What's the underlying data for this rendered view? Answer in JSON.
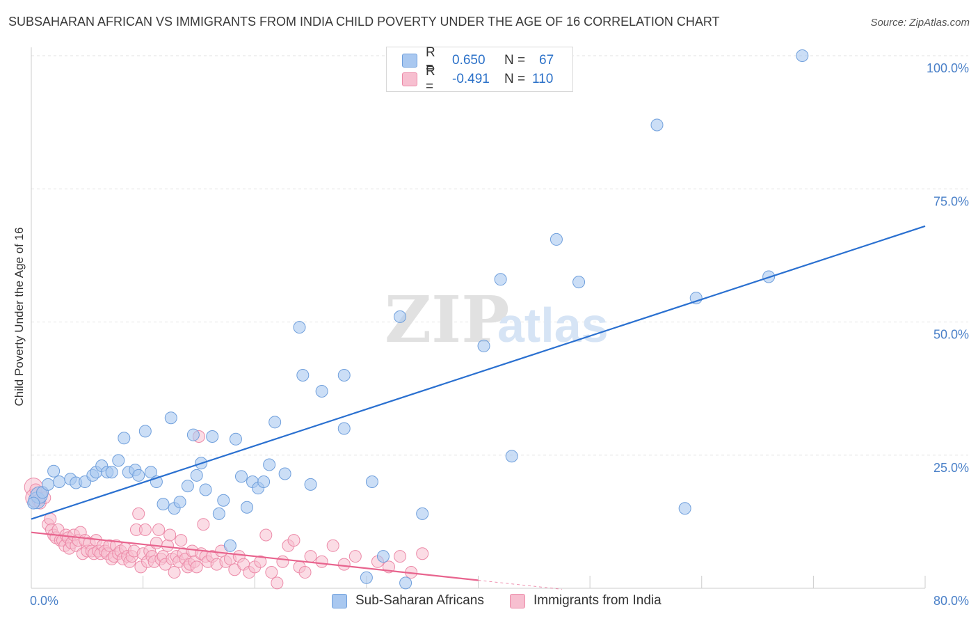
{
  "title": "SUBSAHARAN AFRICAN VS IMMIGRANTS FROM INDIA CHILD POVERTY UNDER THE AGE OF 16 CORRELATION CHART",
  "source": "Source: ZipAtlas.com",
  "watermark": {
    "zip": "ZIP",
    "atlas": "atlas"
  },
  "legend": {
    "rows": [
      {
        "r_label": "R =",
        "r_value": "0.650",
        "n_label": "N =",
        "n_value": "67",
        "color": "#a9c8f0",
        "border": "#6f9fdc"
      },
      {
        "r_label": "R =",
        "r_value": "-0.491",
        "n_label": "N =",
        "n_value": "110",
        "color": "#f7bfd0",
        "border": "#ec8aa8"
      }
    ]
  },
  "bottom_legend": [
    "Sub-Saharan Africans",
    "Immigrants from India"
  ],
  "chart_data": {
    "type": "scatter",
    "title": "SUBSAHARAN AFRICAN VS IMMIGRANTS FROM INDIA CHILD POVERTY UNDER THE AGE OF 16 CORRELATION CHART",
    "xlabel": "",
    "ylabel": "Child Poverty Under the Age of 16",
    "xlim": [
      0,
      80
    ],
    "ylim": [
      0,
      100
    ],
    "x_tick_labels": [
      "0.0%",
      "80.0%"
    ],
    "y_tick_labels": [
      "100.0%",
      "75.0%",
      "50.0%",
      "25.0%"
    ],
    "y_ticks": [
      100,
      75,
      50,
      25
    ],
    "grid": true,
    "legend_position": "top-center",
    "colors": {
      "blue_point": "#a9c8f0",
      "blue_stroke": "#6f9fdc",
      "blue_line": "#2a70d0",
      "pink_point": "#f7bfd0",
      "pink_stroke": "#ec8aa8",
      "pink_line": "#e8648e",
      "tick_text": "#4a80c8"
    },
    "series": [
      {
        "name": "Sub-Saharan Africans",
        "points": [
          [
            0.5,
            16.5
          ],
          [
            0.7,
            17.5
          ],
          [
            1.0,
            18.0
          ],
          [
            1.5,
            19.5
          ],
          [
            2.0,
            22.0
          ],
          [
            2.5,
            20.0
          ],
          [
            3.5,
            20.5
          ],
          [
            4.0,
            19.8
          ],
          [
            4.8,
            20.0
          ],
          [
            5.5,
            21.2
          ],
          [
            5.8,
            21.8
          ],
          [
            6.3,
            23.0
          ],
          [
            6.8,
            21.8
          ],
          [
            7.2,
            21.8
          ],
          [
            7.8,
            24.0
          ],
          [
            8.3,
            28.2
          ],
          [
            8.7,
            21.8
          ],
          [
            9.3,
            22.2
          ],
          [
            9.6,
            21.2
          ],
          [
            10.2,
            29.5
          ],
          [
            10.7,
            21.8
          ],
          [
            11.2,
            20.0
          ],
          [
            11.8,
            15.8
          ],
          [
            12.5,
            32.0
          ],
          [
            12.8,
            15.0
          ],
          [
            13.3,
            16.2
          ],
          [
            14.0,
            19.2
          ],
          [
            14.5,
            28.8
          ],
          [
            14.8,
            21.2
          ],
          [
            15.2,
            23.5
          ],
          [
            15.6,
            18.5
          ],
          [
            16.2,
            28.5
          ],
          [
            16.8,
            14.0
          ],
          [
            17.2,
            16.5
          ],
          [
            17.8,
            8.0
          ],
          [
            18.3,
            28.0
          ],
          [
            18.8,
            21.0
          ],
          [
            19.3,
            15.2
          ],
          [
            19.8,
            20.0
          ],
          [
            20.3,
            18.8
          ],
          [
            20.8,
            20.0
          ],
          [
            21.3,
            23.2
          ],
          [
            21.8,
            31.2
          ],
          [
            22.7,
            21.5
          ],
          [
            24.0,
            49.0
          ],
          [
            24.3,
            40.0
          ],
          [
            25.0,
            19.5
          ],
          [
            26.0,
            37.0
          ],
          [
            28.0,
            30.0
          ],
          [
            28.0,
            40.0
          ],
          [
            30.0,
            2.0
          ],
          [
            30.5,
            20.0
          ],
          [
            31.5,
            6.0
          ],
          [
            33.0,
            51.0
          ],
          [
            33.5,
            1.0
          ],
          [
            35.0,
            14.0
          ],
          [
            40.5,
            45.5
          ],
          [
            42.0,
            58.0
          ],
          [
            43.0,
            24.8
          ],
          [
            47.0,
            65.5
          ],
          [
            49.0,
            57.5
          ],
          [
            56.0,
            87.0
          ],
          [
            58.5,
            15.0
          ],
          [
            59.5,
            54.5
          ],
          [
            66.0,
            58.5
          ],
          [
            69.0,
            100.0
          ],
          [
            0.2,
            16.0
          ]
        ],
        "trend": [
          [
            0,
            13
          ],
          [
            80,
            68
          ]
        ]
      },
      {
        "name": "Immigrants from India",
        "points": [
          [
            0.2,
            19.0
          ],
          [
            0.3,
            17.0
          ],
          [
            0.4,
            18.5
          ],
          [
            0.6,
            16.5
          ],
          [
            0.8,
            16.0
          ],
          [
            1.0,
            18.0
          ],
          [
            1.2,
            17.0
          ],
          [
            1.5,
            12.0
          ],
          [
            1.7,
            13.0
          ],
          [
            1.8,
            11.0
          ],
          [
            2.0,
            10.0
          ],
          [
            2.2,
            9.5
          ],
          [
            2.4,
            11.0
          ],
          [
            2.6,
            9.0
          ],
          [
            2.8,
            9.0
          ],
          [
            3.0,
            8.0
          ],
          [
            3.1,
            10.0
          ],
          [
            3.3,
            9.5
          ],
          [
            3.4,
            7.5
          ],
          [
            3.6,
            8.5
          ],
          [
            3.8,
            10.0
          ],
          [
            4.0,
            8.0
          ],
          [
            4.2,
            9.0
          ],
          [
            4.4,
            10.5
          ],
          [
            4.6,
            6.5
          ],
          [
            4.8,
            9.0
          ],
          [
            5.0,
            7.0
          ],
          [
            5.2,
            8.5
          ],
          [
            5.4,
            7.0
          ],
          [
            5.6,
            6.5
          ],
          [
            5.8,
            9.0
          ],
          [
            6.0,
            7.0
          ],
          [
            6.2,
            6.5
          ],
          [
            6.4,
            8.0
          ],
          [
            6.6,
            7.0
          ],
          [
            6.8,
            6.5
          ],
          [
            7.0,
            8.0
          ],
          [
            7.2,
            5.5
          ],
          [
            7.4,
            6.0
          ],
          [
            7.6,
            8.0
          ],
          [
            7.8,
            6.5
          ],
          [
            8.0,
            7.0
          ],
          [
            8.2,
            5.5
          ],
          [
            8.4,
            7.5
          ],
          [
            8.6,
            6.0
          ],
          [
            8.8,
            5.0
          ],
          [
            9.0,
            6.0
          ],
          [
            9.2,
            7.0
          ],
          [
            9.4,
            11.0
          ],
          [
            9.6,
            14.0
          ],
          [
            9.8,
            4.0
          ],
          [
            10.0,
            6.5
          ],
          [
            10.2,
            11.0
          ],
          [
            10.4,
            5.0
          ],
          [
            10.6,
            7.0
          ],
          [
            10.8,
            6.0
          ],
          [
            11.0,
            5.0
          ],
          [
            11.2,
            8.5
          ],
          [
            11.4,
            11.0
          ],
          [
            11.6,
            5.5
          ],
          [
            11.8,
            6.0
          ],
          [
            12.0,
            4.5
          ],
          [
            12.2,
            8.0
          ],
          [
            12.4,
            10.0
          ],
          [
            12.6,
            5.5
          ],
          [
            12.8,
            3.0
          ],
          [
            13.0,
            6.0
          ],
          [
            13.2,
            5.0
          ],
          [
            13.4,
            9.0
          ],
          [
            13.6,
            6.5
          ],
          [
            13.8,
            5.5
          ],
          [
            14.0,
            4.0
          ],
          [
            14.2,
            4.5
          ],
          [
            14.4,
            7.0
          ],
          [
            14.6,
            5.0
          ],
          [
            14.8,
            4.0
          ],
          [
            15.0,
            28.5
          ],
          [
            15.2,
            6.5
          ],
          [
            15.4,
            12.0
          ],
          [
            15.6,
            6.0
          ],
          [
            15.8,
            5.0
          ],
          [
            16.2,
            6.0
          ],
          [
            16.6,
            4.5
          ],
          [
            17.0,
            7.0
          ],
          [
            17.4,
            5.0
          ],
          [
            17.8,
            5.5
          ],
          [
            18.2,
            3.5
          ],
          [
            18.6,
            6.0
          ],
          [
            19.0,
            4.5
          ],
          [
            19.5,
            3.0
          ],
          [
            20.0,
            4.0
          ],
          [
            20.5,
            5.0
          ],
          [
            21.0,
            10.0
          ],
          [
            21.5,
            3.0
          ],
          [
            22.0,
            1.0
          ],
          [
            22.5,
            5.0
          ],
          [
            23.0,
            8.0
          ],
          [
            23.5,
            9.0
          ],
          [
            24.0,
            4.0
          ],
          [
            24.5,
            3.0
          ],
          [
            25.0,
            6.0
          ],
          [
            26.0,
            5.0
          ],
          [
            27.0,
            8.0
          ],
          [
            28.0,
            4.5
          ],
          [
            29.0,
            6.0
          ],
          [
            31.0,
            5.0
          ],
          [
            32.0,
            4.0
          ],
          [
            33.0,
            6.0
          ],
          [
            34.0,
            3.0
          ],
          [
            35.0,
            6.5
          ]
        ],
        "trend": [
          [
            0,
            10.5
          ],
          [
            40,
            1.5
          ]
        ]
      }
    ]
  }
}
